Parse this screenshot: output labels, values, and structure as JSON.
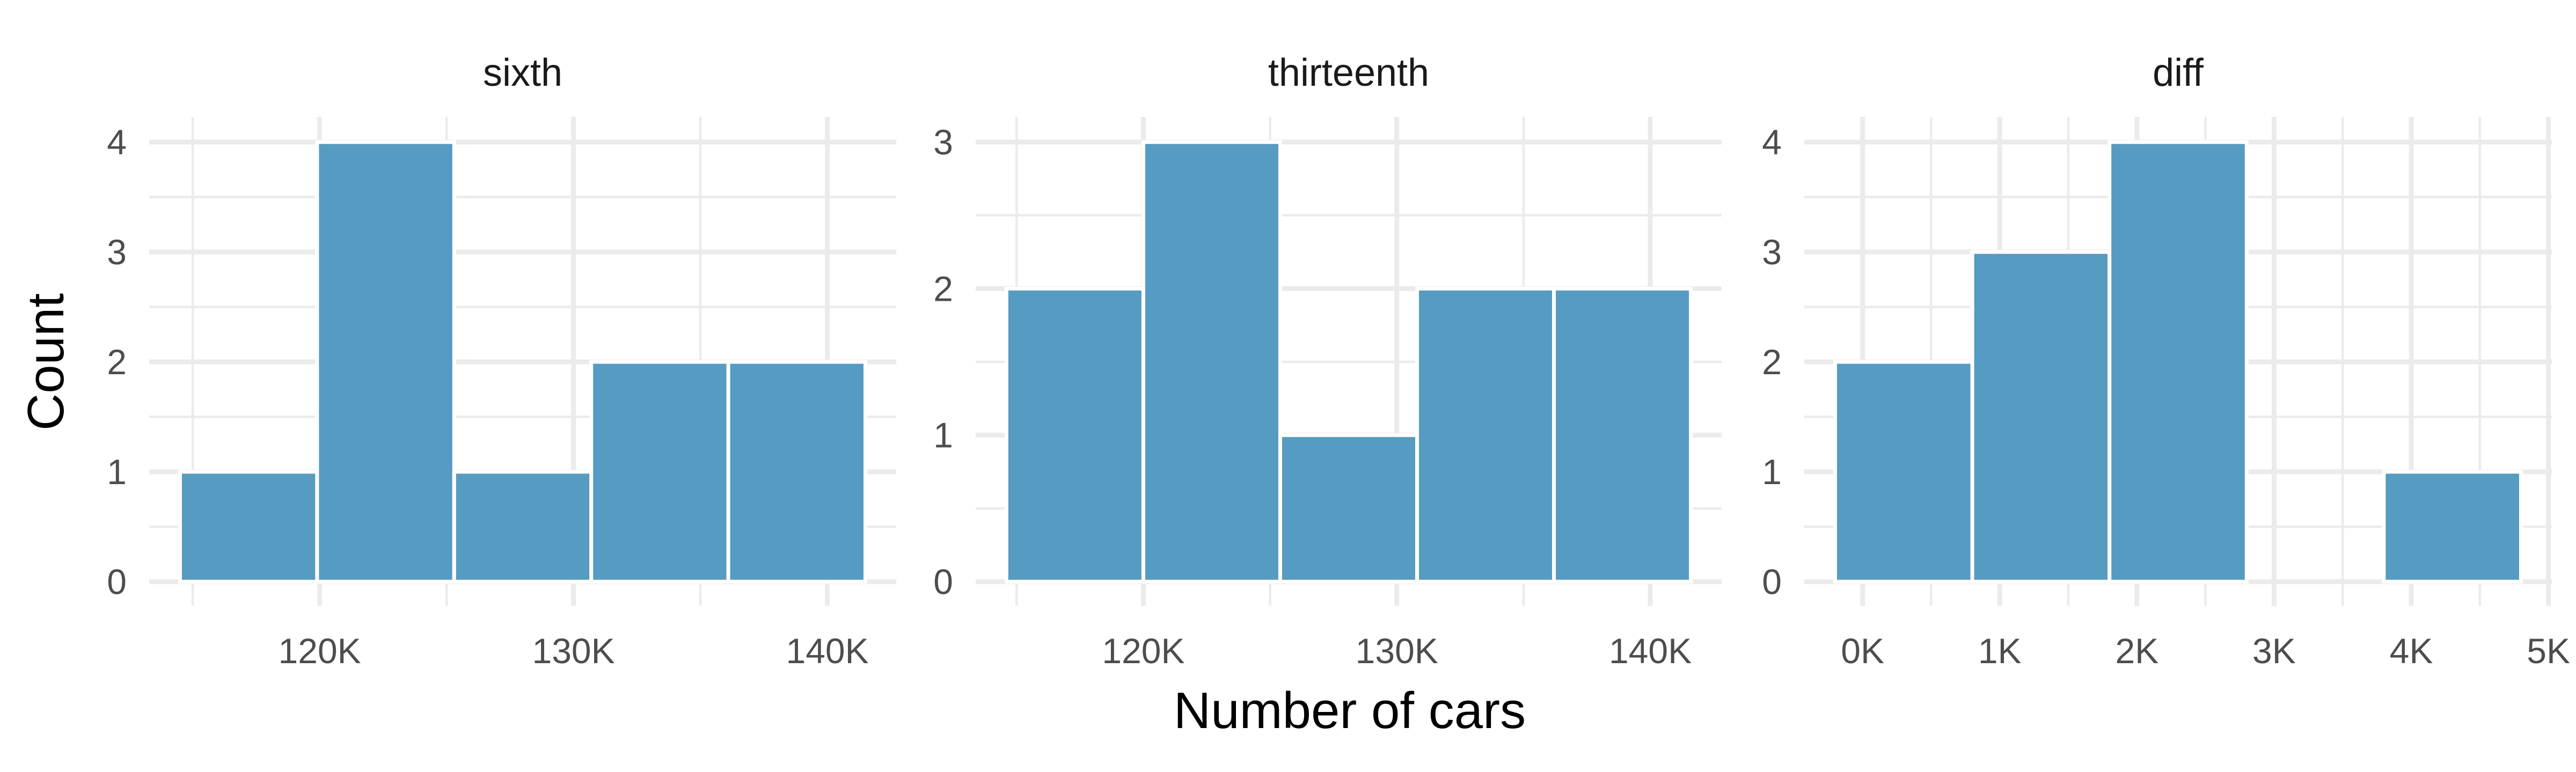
{
  "chart_data": {
    "type": "bar",
    "xlabel": "Number of cars",
    "ylabel": "Count",
    "bar_color": "#569BC1",
    "grid": true,
    "panels": [
      {
        "title": "sixth",
        "ylim": [
          0,
          4
        ],
        "y_ticks": [
          0,
          1,
          2,
          3,
          4
        ],
        "x_ticks": [
          120000,
          130000,
          140000
        ],
        "x_tick_labels": [
          "120K",
          "130K",
          "140K"
        ],
        "bins": [
          {
            "x0": 114500,
            "x1": 119900,
            "count": 1
          },
          {
            "x0": 119900,
            "x1": 125300,
            "count": 4
          },
          {
            "x0": 125300,
            "x1": 130700,
            "count": 1
          },
          {
            "x0": 130700,
            "x1": 136100,
            "count": 2
          },
          {
            "x0": 136100,
            "x1": 141500,
            "count": 2
          }
        ]
      },
      {
        "title": "thirteenth",
        "ylim": [
          0,
          3
        ],
        "y_ticks": [
          0,
          1,
          2,
          3
        ],
        "x_ticks": [
          120000,
          130000,
          140000
        ],
        "x_tick_labels": [
          "120K",
          "130K",
          "140K"
        ],
        "bins": [
          {
            "x0": 114600,
            "x1": 120000,
            "count": 2
          },
          {
            "x0": 120000,
            "x1": 125400,
            "count": 3
          },
          {
            "x0": 125400,
            "x1": 130800,
            "count": 1
          },
          {
            "x0": 130800,
            "x1": 136200,
            "count": 2
          },
          {
            "x0": 136200,
            "x1": 141600,
            "count": 2
          }
        ]
      },
      {
        "title": "diff",
        "ylim": [
          0,
          4
        ],
        "y_ticks": [
          0,
          1,
          2,
          3,
          4
        ],
        "x_ticks": [
          0,
          1000,
          2000,
          3000,
          4000,
          5000
        ],
        "x_tick_labels": [
          "0K",
          "1K",
          "2K",
          "3K",
          "4K",
          "5K"
        ],
        "bins": [
          {
            "x0": -200,
            "x1": 800,
            "count": 2
          },
          {
            "x0": 800,
            "x1": 1800,
            "count": 3
          },
          {
            "x0": 1800,
            "x1": 2800,
            "count": 4
          },
          {
            "x0": 2800,
            "x1": 3800,
            "count": 0
          },
          {
            "x0": 3800,
            "x1": 4800,
            "count": 1
          }
        ]
      }
    ]
  }
}
